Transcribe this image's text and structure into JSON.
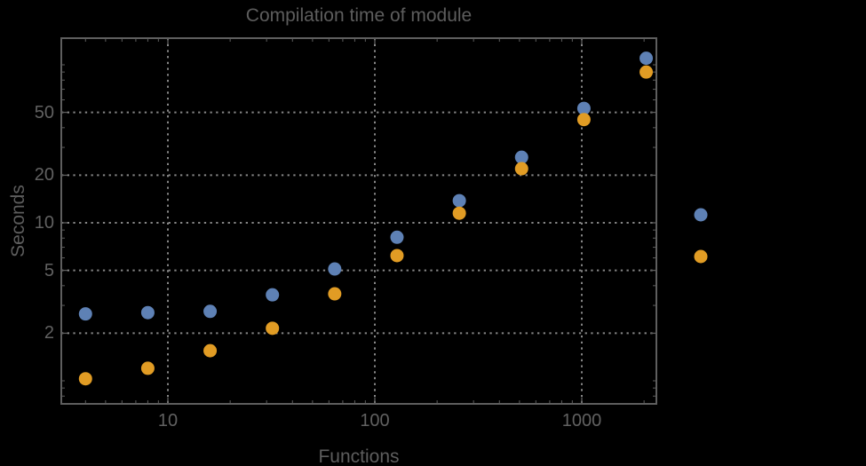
{
  "title": "Compilation time of module",
  "colors": {
    "background": "#000000",
    "frame": "#5e5e5e",
    "gridline": "#868686",
    "label_text": "#5d5d5d",
    "tick_text": "#616161",
    "series1_blue": "#5E81B5",
    "series2_orange": "#E19C24"
  },
  "chart_data": {
    "type": "scatter",
    "title": "Compilation time of module",
    "xlabel": "Functions",
    "ylabel": "Seconds",
    "x_scale": "log",
    "y_scale": "log",
    "grid": "dotted lines at labeled major ticks",
    "x_range": [
      3.1,
      2350
    ],
    "y_range": [
      0.71,
      148
    ],
    "x_tick_labels": [
      10,
      100,
      1000
    ],
    "y_tick_labels": [
      2,
      5,
      10,
      20,
      50
    ],
    "x": [
      4,
      8,
      16,
      32,
      64,
      128,
      256,
      512,
      1024,
      2048
    ],
    "series": [
      {
        "id": "series-1-blue",
        "color": "#5E81B5",
        "values": [
          2.65,
          2.7,
          2.75,
          3.5,
          5.1,
          8.1,
          13.8,
          26,
          53,
          110
        ]
      },
      {
        "id": "series-2-orange",
        "color": "#E19C24",
        "values": [
          1.03,
          1.2,
          1.55,
          2.15,
          3.55,
          6.2,
          11.5,
          22,
          45,
          90
        ]
      }
    ],
    "legend": {
      "position": "outside-right",
      "labels_visible": false,
      "markers": [
        {
          "color": "#5E81B5"
        },
        {
          "color": "#E19C24"
        }
      ]
    }
  }
}
